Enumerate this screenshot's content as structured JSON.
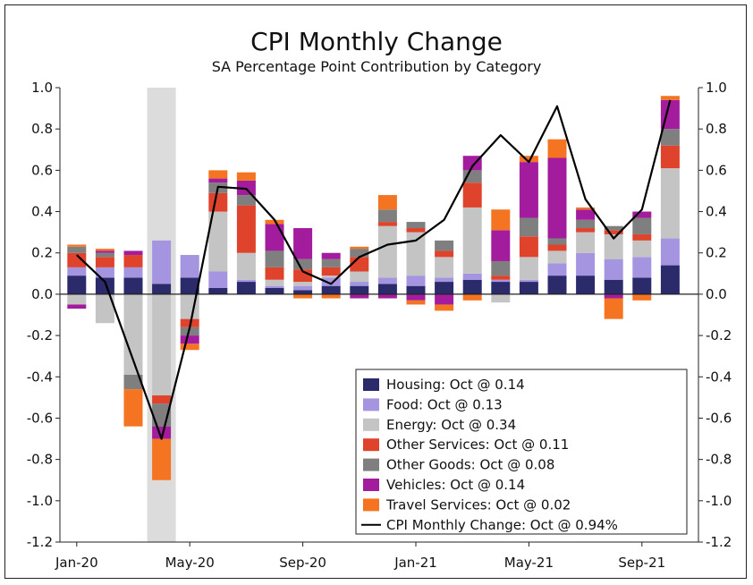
{
  "chart_data": {
    "type": "bar",
    "stacked": true,
    "title": "CPI Monthly Change",
    "subtitle": "SA Percentage Point Contribution by Category",
    "ylim": [
      -1.2,
      1.0
    ],
    "y_ticks": [
      "1.0",
      "0.8",
      "0.6",
      "0.4",
      "0.2",
      "0.0",
      "-0.2",
      "-0.4",
      "-0.6",
      "-0.8",
      "-1.0",
      "-1.2"
    ],
    "x_tick_labels": [
      "Jan-20",
      "May-20",
      "Sep-20",
      "Jan-21",
      "May-21",
      "Sep-21"
    ],
    "categories": [
      "Jan-20",
      "Feb-20",
      "Mar-20",
      "Apr-20",
      "May-20",
      "Jun-20",
      "Jul-20",
      "Aug-20",
      "Sep-20",
      "Oct-20",
      "Nov-20",
      "Dec-20",
      "Jan-21",
      "Feb-21",
      "Mar-21",
      "Apr-21",
      "May-21",
      "Jun-21",
      "Jul-21",
      "Aug-21",
      "Sep-21",
      "Oct-21"
    ],
    "recession_shading": {
      "category": "Apr-20",
      "color": "#dcdcdc"
    },
    "series": [
      {
        "name": "Housing",
        "color": "#2b2a6b",
        "values": [
          0.09,
          0.08,
          0.08,
          0.05,
          0.08,
          0.03,
          0.06,
          0.03,
          0.02,
          0.04,
          0.04,
          0.05,
          0.04,
          0.06,
          0.07,
          0.06,
          0.06,
          0.09,
          0.09,
          0.07,
          0.08,
          0.14
        ]
      },
      {
        "name": "Food",
        "color": "#a595e0",
        "values": [
          0.04,
          0.05,
          0.05,
          0.21,
          0.11,
          0.08,
          0.01,
          0.01,
          0.02,
          0.04,
          0.02,
          0.03,
          0.05,
          0.02,
          0.03,
          0.01,
          0.01,
          0.06,
          0.11,
          0.1,
          0.1,
          0.13
        ]
      },
      {
        "name": "Energy",
        "color": "#c4c4c4",
        "values": [
          -0.05,
          -0.14,
          -0.39,
          -0.49,
          -0.12,
          0.29,
          0.13,
          0.03,
          0.02,
          0.01,
          0.05,
          0.25,
          0.21,
          0.1,
          0.32,
          -0.04,
          0.11,
          0.06,
          0.1,
          0.12,
          0.08,
          0.34
        ]
      },
      {
        "name": "Other Services",
        "color": "#e0432c",
        "values": [
          0.07,
          0.05,
          0.06,
          -0.04,
          -0.04,
          0.09,
          0.23,
          0.06,
          0.06,
          0.04,
          0.07,
          0.02,
          0.02,
          0.03,
          0.12,
          0.02,
          0.1,
          0.03,
          0.02,
          0.02,
          0.03,
          0.11
        ]
      },
      {
        "name": "Other Goods",
        "color": "#7f7f7f",
        "values": [
          0.03,
          0.02,
          -0.07,
          -0.11,
          -0.04,
          0.05,
          0.05,
          0.08,
          0.05,
          0.04,
          0.04,
          0.06,
          0.03,
          0.05,
          0.06,
          0.07,
          0.09,
          0.03,
          0.04,
          0.02,
          0.08,
          0.08
        ]
      },
      {
        "name": "Vehicles",
        "color": "#a41c9e",
        "values": [
          -0.02,
          0.01,
          0.02,
          -0.06,
          -0.04,
          0.02,
          0.07,
          0.13,
          0.15,
          0.03,
          -0.02,
          -0.02,
          -0.03,
          -0.05,
          0.07,
          0.15,
          0.27,
          0.39,
          0.05,
          -0.02,
          0.03,
          0.14
        ]
      },
      {
        "name": "Travel Services",
        "color": "#f47422",
        "values": [
          0.01,
          0.01,
          -0.18,
          -0.2,
          -0.03,
          0.04,
          0.04,
          0.02,
          -0.02,
          -0.02,
          0.01,
          0.07,
          -0.02,
          -0.03,
          -0.03,
          0.1,
          0.03,
          0.09,
          0.01,
          -0.1,
          -0.03,
          0.02
        ]
      }
    ],
    "line": {
      "name": "CPI Monthly Change",
      "color": "#000000",
      "values": [
        0.19,
        0.06,
        -0.32,
        -0.7,
        -0.16,
        0.52,
        0.51,
        0.36,
        0.11,
        0.05,
        0.18,
        0.24,
        0.26,
        0.36,
        0.62,
        0.77,
        0.64,
        0.91,
        0.46,
        0.27,
        0.41,
        0.94
      ]
    },
    "legend": {
      "placement": "bottom-right",
      "entries": [
        {
          "label": "Housing: Oct @ 0.14",
          "color": "#2b2a6b",
          "kind": "box"
        },
        {
          "label": "Food: Oct @ 0.13",
          "color": "#a595e0",
          "kind": "box"
        },
        {
          "label": "Energy: Oct @ 0.34",
          "color": "#c4c4c4",
          "kind": "box"
        },
        {
          "label": "Other Services: Oct @ 0.11",
          "color": "#e0432c",
          "kind": "box"
        },
        {
          "label": "Other Goods: Oct @ 0.08",
          "color": "#7f7f7f",
          "kind": "box"
        },
        {
          "label": "Vehicles: Oct @ 0.14",
          "color": "#a41c9e",
          "kind": "box"
        },
        {
          "label": "Travel Services: Oct @ 0.02",
          "color": "#f47422",
          "kind": "box"
        },
        {
          "label": "CPI Monthly Change: Oct @ 0.94%",
          "color": "#000000",
          "kind": "line"
        }
      ]
    }
  }
}
